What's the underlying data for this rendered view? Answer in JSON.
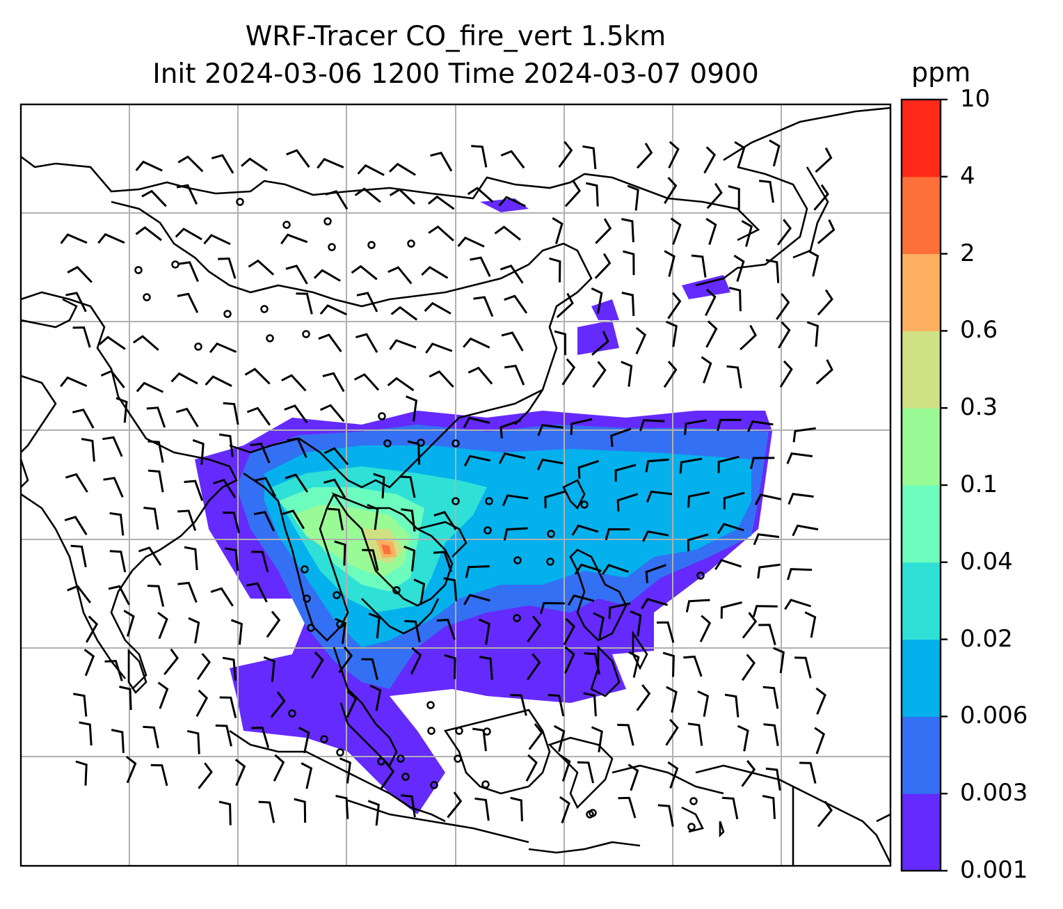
{
  "title_line1": "WRF-Tracer CO_fire_vert 1.5km",
  "title_line2": "Init 2024-03-06 1200 Time 2024-03-07 0900",
  "colorbar": {
    "unit": "ppm",
    "levels": [
      "0.001",
      "0.003",
      "0.006",
      "0.02",
      "0.04",
      "0.1",
      "0.3",
      "0.6",
      "2",
      "4",
      "10"
    ],
    "colors": [
      "#652afd",
      "#3470f3",
      "#04b1ec",
      "#2fe0d6",
      "#6cfdbe",
      "#99fb96",
      "#cfe183",
      "#fdb160",
      "#fe703a",
      "#ff291a"
    ]
  },
  "colors": {
    "grid": "#b0b0b0",
    "coast": "#000000",
    "barb": "#000000"
  }
}
